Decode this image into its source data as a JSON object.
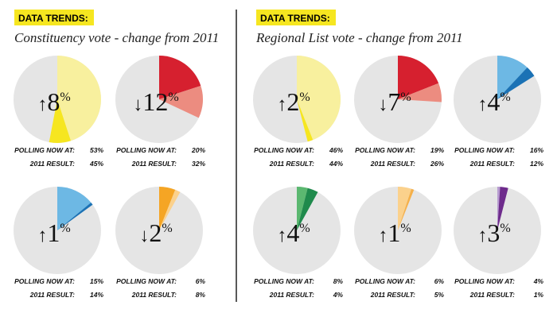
{
  "labels": {
    "polling": "POLLING NOW AT:",
    "result": "2011 RESULT:"
  },
  "panels": [
    {
      "badge": "DATA TRENDS:",
      "title": "Constituency vote - change from 2011",
      "pies": [
        {
          "arrow": "↑",
          "change": 8,
          "unit": "%",
          "polling": 53,
          "polling_label": "53%",
          "result_2011": 45,
          "result_label": "45%",
          "colors": [
            "#f8f09e",
            "#f6e620"
          ]
        },
        {
          "arrow": "↓",
          "change": 12,
          "unit": "%",
          "polling": 20,
          "polling_label": "20%",
          "result_2011": 32,
          "result_label": "32%",
          "colors": [
            "#d6202f",
            "#ec8c80"
          ]
        },
        {
          "arrow": "↑",
          "change": 1,
          "unit": "%",
          "polling": 15,
          "polling_label": "15%",
          "result_2011": 14,
          "result_label": "14%",
          "colors": [
            "#6db8e4",
            "#1b72b5"
          ]
        },
        {
          "arrow": "↓",
          "change": 2,
          "unit": "%",
          "polling": 6,
          "polling_label": "6%",
          "result_2011": 8,
          "result_label": "8%",
          "colors": [
            "#f5a524",
            "#fbd18c"
          ]
        }
      ]
    },
    {
      "badge": "DATA TRENDS:",
      "title": "Regional List vote - change from 2011",
      "pies": [
        {
          "arrow": "↑",
          "change": 2,
          "unit": "%",
          "polling": 46,
          "polling_label": "46%",
          "result_2011": 44,
          "result_label": "44%",
          "colors": [
            "#f8f09e",
            "#f6e620"
          ]
        },
        {
          "arrow": "↓",
          "change": 7,
          "unit": "%",
          "polling": 19,
          "polling_label": "19%",
          "result_2011": 26,
          "result_label": "26%",
          "colors": [
            "#d6202f",
            "#ec8c80"
          ]
        },
        {
          "arrow": "↑",
          "change": 4,
          "unit": "%",
          "polling": 16,
          "polling_label": "16%",
          "result_2011": 12,
          "result_label": "12%",
          "colors": [
            "#6db8e4",
            "#1b72b5"
          ]
        },
        {
          "arrow": "↑",
          "change": 4,
          "unit": "%",
          "polling": 8,
          "polling_label": "8%",
          "result_2011": 4,
          "result_label": "4%",
          "colors": [
            "#5bb870",
            "#1f8a4c"
          ]
        },
        {
          "arrow": "↑",
          "change": 1,
          "unit": "%",
          "polling": 6,
          "polling_label": "6%",
          "result_2011": 5,
          "result_label": "5%",
          "colors": [
            "#fbd18c",
            "#f5b04a"
          ]
        },
        {
          "arrow": "↑",
          "change": 3,
          "unit": "%",
          "polling": 4,
          "polling_label": "4%",
          "result_2011": 1,
          "result_label": "1%",
          "colors": [
            "#b79bd0",
            "#6e2b8c"
          ]
        }
      ]
    }
  ]
}
